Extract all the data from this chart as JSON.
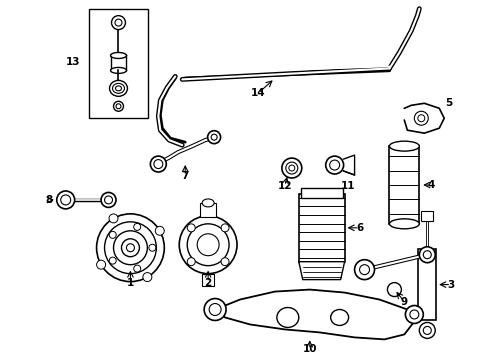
{
  "background_color": "#ffffff",
  "line_color": "#000000",
  "text_color": "#000000",
  "fig_width": 4.9,
  "fig_height": 3.6,
  "dpi": 100
}
